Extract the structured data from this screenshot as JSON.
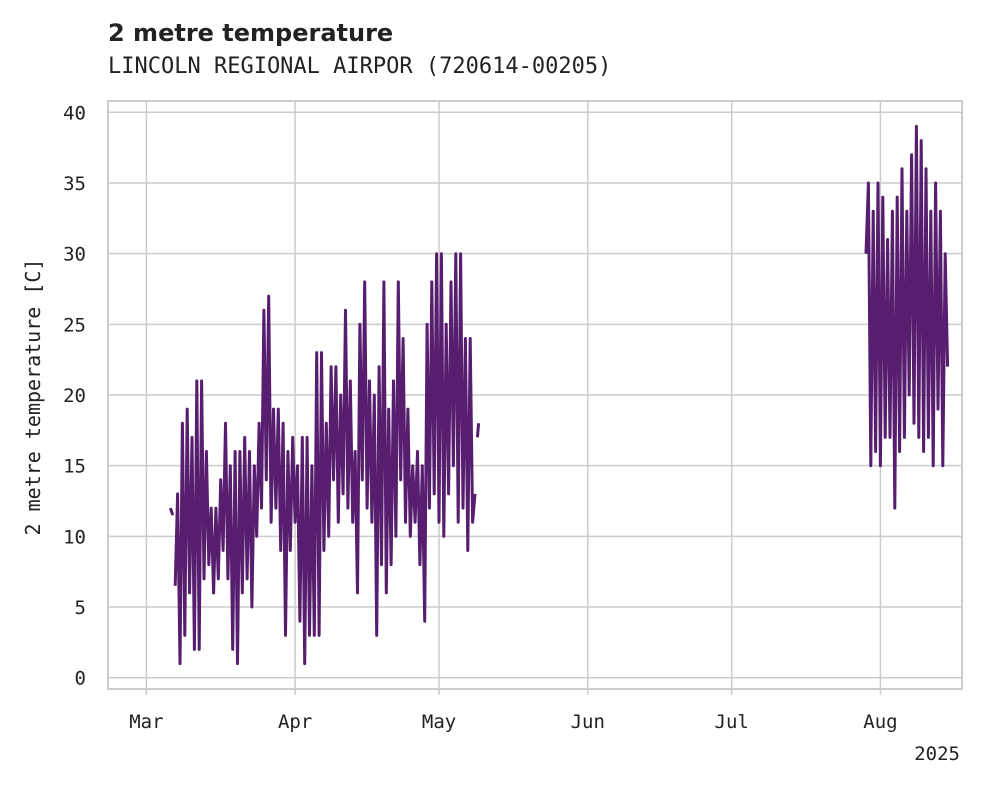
{
  "chart_data": {
    "type": "line",
    "title": "2 metre temperature",
    "subtitle": "LINCOLN REGIONAL AIRPOR (720614-00205)",
    "xlabel": "",
    "ylabel": "2 metre temperature [C]",
    "x_ticks": [
      {
        "date": "2025-03-01",
        "label": "Mar"
      },
      {
        "date": "2025-04-01",
        "label": "Apr"
      },
      {
        "date": "2025-05-01",
        "label": "May"
      },
      {
        "date": "2025-06-01",
        "label": "Jun"
      },
      {
        "date": "2025-07-01",
        "label": "Jul"
      },
      {
        "date": "2025-08-01",
        "label": "Aug"
      }
    ],
    "x_offset_label": "2025",
    "xlim": [
      "2025-02-21",
      "2025-08-18"
    ],
    "ylim": [
      -0.8,
      40.8
    ],
    "y_ticks": [
      0,
      5,
      10,
      15,
      20,
      25,
      30,
      35,
      40
    ],
    "grid": true,
    "line_color": "#571d6e",
    "series": [
      {
        "values": [
          [
            "2025-03-06",
            12.0
          ],
          [
            "2025-03-06T12:00",
            11.5
          ],
          [
            "2025-03-07",
            null
          ],
          [
            "2025-03-07",
            6.5
          ],
          [
            "2025-03-07T12:00",
            13.0
          ],
          [
            "2025-03-08",
            1.0
          ],
          [
            "2025-03-08T12:00",
            18.0
          ],
          [
            "2025-03-09",
            3.0
          ],
          [
            "2025-03-09T12:00",
            19.0
          ],
          [
            "2025-03-10",
            6.0
          ],
          [
            "2025-03-10T12:00",
            17.0
          ],
          [
            "2025-03-11",
            2.0
          ],
          [
            "2025-03-11T12:00",
            21.0
          ],
          [
            "2025-03-12",
            2.0
          ],
          [
            "2025-03-12T12:00",
            21.0
          ],
          [
            "2025-03-13",
            7.0
          ],
          [
            "2025-03-13T12:00",
            16.0
          ],
          [
            "2025-03-14",
            8.0
          ],
          [
            "2025-03-14T12:00",
            12.0
          ],
          [
            "2025-03-15",
            6.0
          ],
          [
            "2025-03-15T12:00",
            12.0
          ],
          [
            "2025-03-16",
            7.0
          ],
          [
            "2025-03-16T12:00",
            14.0
          ],
          [
            "2025-03-17",
            9.0
          ],
          [
            "2025-03-17T12:00",
            18.0
          ],
          [
            "2025-03-18",
            7.0
          ],
          [
            "2025-03-18T12:00",
            15.0
          ],
          [
            "2025-03-19",
            2.0
          ],
          [
            "2025-03-19T12:00",
            16.0
          ],
          [
            "2025-03-20",
            1.0
          ],
          [
            "2025-03-20T12:00",
            16.0
          ],
          [
            "2025-03-21",
            6.0
          ],
          [
            "2025-03-21T12:00",
            17.0
          ],
          [
            "2025-03-22",
            7.0
          ],
          [
            "2025-03-22T12:00",
            16.0
          ],
          [
            "2025-03-23",
            5.0
          ],
          [
            "2025-03-23T12:00",
            15.0
          ],
          [
            "2025-03-24",
            10.0
          ],
          [
            "2025-03-24T12:00",
            18.0
          ],
          [
            "2025-03-25",
            12.0
          ],
          [
            "2025-03-25T12:00",
            26.0
          ],
          [
            "2025-03-26",
            14.0
          ],
          [
            "2025-03-26T12:00",
            27.0
          ],
          [
            "2025-03-27",
            11.0
          ],
          [
            "2025-03-27T12:00",
            19.0
          ],
          [
            "2025-03-28",
            12.0
          ],
          [
            "2025-03-28T12:00",
            19.0
          ],
          [
            "2025-03-29",
            9.0
          ],
          [
            "2025-03-29T12:00",
            18.0
          ],
          [
            "2025-03-30",
            3.0
          ],
          [
            "2025-03-30T12:00",
            16.0
          ],
          [
            "2025-03-31",
            9.0
          ],
          [
            "2025-03-31T12:00",
            17.0
          ],
          [
            "2025-04-01",
            11.0
          ],
          [
            "2025-04-01T12:00",
            15.0
          ],
          [
            "2025-04-02",
            4.0
          ],
          [
            "2025-04-02T12:00",
            17.0
          ],
          [
            "2025-04-03",
            1.0
          ],
          [
            "2025-04-03T12:00",
            17.0
          ],
          [
            "2025-04-04",
            3.0
          ],
          [
            "2025-04-04T12:00",
            15.0
          ],
          [
            "2025-04-05",
            3.0
          ],
          [
            "2025-04-05T12:00",
            23.0
          ],
          [
            "2025-04-06",
            3.0
          ],
          [
            "2025-04-06T12:00",
            23.0
          ],
          [
            "2025-04-07",
            9.0
          ],
          [
            "2025-04-07T12:00",
            18.0
          ],
          [
            "2025-04-08",
            10.0
          ],
          [
            "2025-04-08T12:00",
            22.0
          ],
          [
            "2025-04-09",
            14.0
          ],
          [
            "2025-04-09T12:00",
            22.0
          ],
          [
            "2025-04-10",
            11.0
          ],
          [
            "2025-04-10T12:00",
            20.0
          ],
          [
            "2025-04-11",
            13.0
          ],
          [
            "2025-04-11T12:00",
            26.0
          ],
          [
            "2025-04-12",
            12.0
          ],
          [
            "2025-04-12T12:00",
            21.0
          ],
          [
            "2025-04-13",
            11.0
          ],
          [
            "2025-04-13T12:00",
            16.0
          ],
          [
            "2025-04-14",
            6.0
          ],
          [
            "2025-04-14T12:00",
            25.0
          ],
          [
            "2025-04-15",
            14.0
          ],
          [
            "2025-04-15T12:00",
            28.0
          ],
          [
            "2025-04-16",
            12.0
          ],
          [
            "2025-04-16T12:00",
            21.0
          ],
          [
            "2025-04-17",
            11.0
          ],
          [
            "2025-04-17T12:00",
            20.0
          ],
          [
            "2025-04-18",
            3.0
          ],
          [
            "2025-04-18T12:00",
            22.0
          ],
          [
            "2025-04-19",
            8.0
          ],
          [
            "2025-04-19T12:00",
            28.0
          ],
          [
            "2025-04-20",
            6.0
          ],
          [
            "2025-04-20T12:00",
            19.0
          ],
          [
            "2025-04-21",
            8.0
          ],
          [
            "2025-04-21T12:00",
            21.0
          ],
          [
            "2025-04-22",
            10.0
          ],
          [
            "2025-04-22T12:00",
            28.0
          ],
          [
            "2025-04-23",
            14.0
          ],
          [
            "2025-04-23T12:00",
            24.0
          ],
          [
            "2025-04-24",
            11.0
          ],
          [
            "2025-04-24T12:00",
            19.0
          ],
          [
            "2025-04-25",
            10.0
          ],
          [
            "2025-04-25T12:00",
            15.0
          ],
          [
            "2025-04-26",
            11.0
          ],
          [
            "2025-04-26T12:00",
            16.0
          ],
          [
            "2025-04-27",
            8.0
          ],
          [
            "2025-04-27T12:00",
            15.0
          ],
          [
            "2025-04-28",
            4.0
          ],
          [
            "2025-04-28T12:00",
            25.0
          ],
          [
            "2025-04-29",
            12.0
          ],
          [
            "2025-04-29T12:00",
            28.0
          ],
          [
            "2025-04-30",
            13.0
          ],
          [
            "2025-04-30T12:00",
            30.0
          ],
          [
            "2025-05-01",
            11.0
          ],
          [
            "2025-05-01T12:00",
            30.0
          ],
          [
            "2025-05-02",
            10.0
          ],
          [
            "2025-05-02T12:00",
            25.0
          ],
          [
            "2025-05-03",
            13.0
          ],
          [
            "2025-05-03T12:00",
            28.0
          ],
          [
            "2025-05-04",
            15.0
          ],
          [
            "2025-05-04T12:00",
            30.0
          ],
          [
            "2025-05-05",
            11.0
          ],
          [
            "2025-05-05T12:00",
            30.0
          ],
          [
            "2025-05-06",
            12.0
          ],
          [
            "2025-05-06T12:00",
            24.0
          ],
          [
            "2025-05-07",
            9.0
          ],
          [
            "2025-05-07T12:00",
            24.0
          ],
          [
            "2025-05-08",
            11.0
          ],
          [
            "2025-05-08T12:00",
            13.0
          ],
          [
            "2025-05-09",
            null
          ],
          [
            "2025-05-09",
            17.0
          ],
          [
            "2025-05-09T06:00",
            18.0
          ],
          [
            "2025-05-09T12:00",
            null
          ],
          [
            "2025-07-29",
            30.0
          ],
          [
            "2025-07-29T12:00",
            35.0
          ],
          [
            "2025-07-30",
            15.0
          ],
          [
            "2025-07-30T12:00",
            33.0
          ],
          [
            "2025-07-31",
            16.0
          ],
          [
            "2025-07-31T12:00",
            35.0
          ],
          [
            "2025-08-01",
            15.0
          ],
          [
            "2025-08-01T12:00",
            34.0
          ],
          [
            "2025-08-02",
            17.0
          ],
          [
            "2025-08-02T12:00",
            31.0
          ],
          [
            "2025-08-03",
            17.0
          ],
          [
            "2025-08-03T12:00",
            33.0
          ],
          [
            "2025-08-04",
            12.0
          ],
          [
            "2025-08-04T12:00",
            34.0
          ],
          [
            "2025-08-05",
            16.0
          ],
          [
            "2025-08-05T12:00",
            36.0
          ],
          [
            "2025-08-06",
            17.0
          ],
          [
            "2025-08-06T12:00",
            33.0
          ],
          [
            "2025-08-07",
            20.0
          ],
          [
            "2025-08-07T12:00",
            37.0
          ],
          [
            "2025-08-08",
            18.0
          ],
          [
            "2025-08-08T12:00",
            39.0
          ],
          [
            "2025-08-09",
            17.0
          ],
          [
            "2025-08-09T12:00",
            38.0
          ],
          [
            "2025-08-10",
            16.0
          ],
          [
            "2025-08-10T12:00",
            36.0
          ],
          [
            "2025-08-11",
            17.0
          ],
          [
            "2025-08-11T12:00",
            33.0
          ],
          [
            "2025-08-12",
            15.0
          ],
          [
            "2025-08-12T12:00",
            35.0
          ],
          [
            "2025-08-13",
            19.0
          ],
          [
            "2025-08-13T12:00",
            33.0
          ],
          [
            "2025-08-14",
            15.0
          ],
          [
            "2025-08-14T12:00",
            30.0
          ],
          [
            "2025-08-15",
            22.0
          ]
        ]
      }
    ]
  }
}
